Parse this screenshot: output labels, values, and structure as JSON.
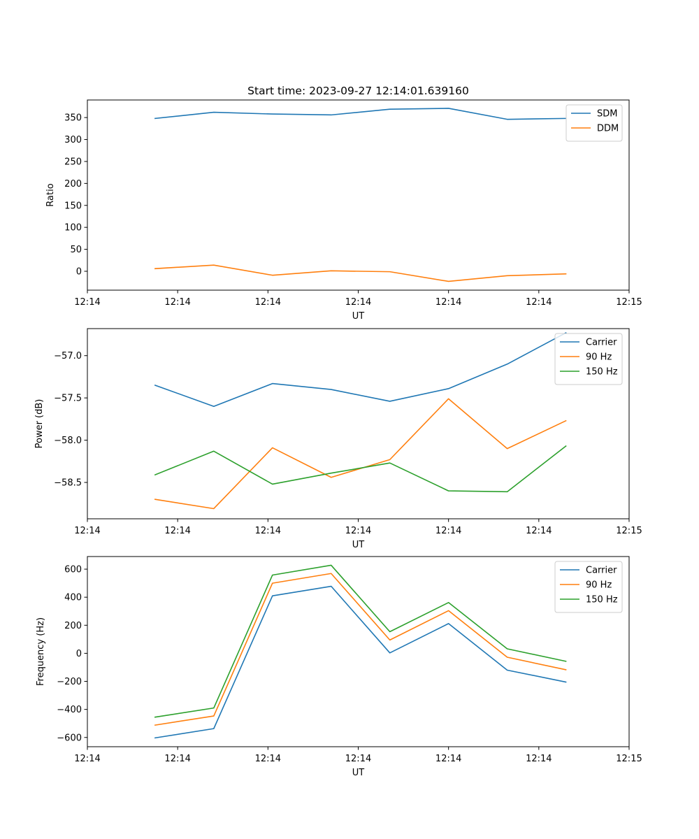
{
  "chart_data": [
    {
      "type": "line",
      "title": "Start time: 2023-09-27 12:14:01.639160",
      "xlabel": "UT",
      "ylabel": "Ratio",
      "x": [
        0.75,
        1.4,
        2.05,
        2.7,
        3.35,
        4.0,
        4.65,
        5.3
      ],
      "xlim": [
        0,
        6
      ],
      "ylim": [
        -43,
        390
      ],
      "xticks": [
        0,
        1,
        2,
        3,
        4,
        5,
        6
      ],
      "xtick_labels": [
        "12:14",
        "12:14",
        "12:14",
        "12:14",
        "12:14",
        "12:14",
        "12:15"
      ],
      "yticks": [
        0,
        50,
        100,
        150,
        200,
        250,
        300,
        350
      ],
      "ytick_labels": [
        "0",
        "50",
        "100",
        "150",
        "200",
        "250",
        "300",
        "350"
      ],
      "series": [
        {
          "name": "SDM",
          "color": "#1f77b4",
          "values": [
            348,
            362,
            358,
            356,
            369,
            371,
            346,
            348
          ]
        },
        {
          "name": "DDM",
          "color": "#ff7f0e",
          "values": [
            6,
            14,
            -9,
            1,
            -1,
            -23,
            -10,
            -6
          ]
        }
      ],
      "legend": "top-right",
      "grid": false
    },
    {
      "type": "line",
      "title": "",
      "xlabel": "UT",
      "ylabel": "Power (dB)",
      "x": [
        0.75,
        1.4,
        2.05,
        2.7,
        3.35,
        4.0,
        4.65,
        5.3
      ],
      "xlim": [
        0,
        6
      ],
      "ylim": [
        -58.93,
        -56.68
      ],
      "xticks": [
        0,
        1,
        2,
        3,
        4,
        5,
        6
      ],
      "xtick_labels": [
        "12:14",
        "12:14",
        "12:14",
        "12:14",
        "12:14",
        "12:14",
        "12:15"
      ],
      "yticks": [
        -58.5,
        -58.0,
        -57.5,
        -57.0
      ],
      "ytick_labels": [
        "−58.5",
        "−58.0",
        "−57.5",
        "−57.0"
      ],
      "series": [
        {
          "name": "Carrier",
          "color": "#1f77b4",
          "values": [
            -57.35,
            -57.6,
            -57.33,
            -57.4,
            -57.54,
            -57.39,
            -57.1,
            -56.73
          ]
        },
        {
          "name": "90 Hz",
          "color": "#ff7f0e",
          "values": [
            -58.7,
            -58.81,
            -58.09,
            -58.44,
            -58.23,
            -57.51,
            -58.1,
            -57.77
          ]
        },
        {
          "name": "150 Hz",
          "color": "#2ca02c",
          "values": [
            -58.41,
            -58.13,
            -58.52,
            -58.39,
            -58.27,
            -58.6,
            -58.61,
            -58.07
          ]
        }
      ],
      "legend": "top-right",
      "grid": false
    },
    {
      "type": "line",
      "title": "",
      "xlabel": "UT",
      "ylabel": "Frequency (Hz)",
      "x": [
        0.75,
        1.4,
        2.05,
        2.7,
        3.35,
        4.0,
        4.65,
        5.3
      ],
      "xlim": [
        0,
        6
      ],
      "ylim": [
        -666,
        690
      ],
      "xticks": [
        0,
        1,
        2,
        3,
        4,
        5,
        6
      ],
      "xtick_labels": [
        "12:14",
        "12:14",
        "12:14",
        "12:14",
        "12:14",
        "12:14",
        "12:15"
      ],
      "yticks": [
        -600,
        -400,
        -200,
        0,
        200,
        400,
        600
      ],
      "ytick_labels": [
        "−600",
        "−400",
        "−200",
        "0",
        "200",
        "400",
        "600"
      ],
      "series": [
        {
          "name": "Carrier",
          "color": "#1f77b4",
          "values": [
            -603,
            -537,
            410,
            478,
            3,
            212,
            -120,
            -205
          ]
        },
        {
          "name": "90 Hz",
          "color": "#ff7f0e",
          "values": [
            -512,
            -447,
            500,
            569,
            95,
            304,
            -28,
            -117
          ]
        },
        {
          "name": "150 Hz",
          "color": "#2ca02c",
          "values": [
            -455,
            -390,
            558,
            628,
            154,
            362,
            32,
            -57
          ]
        }
      ],
      "legend": "top-right",
      "grid": false
    }
  ]
}
